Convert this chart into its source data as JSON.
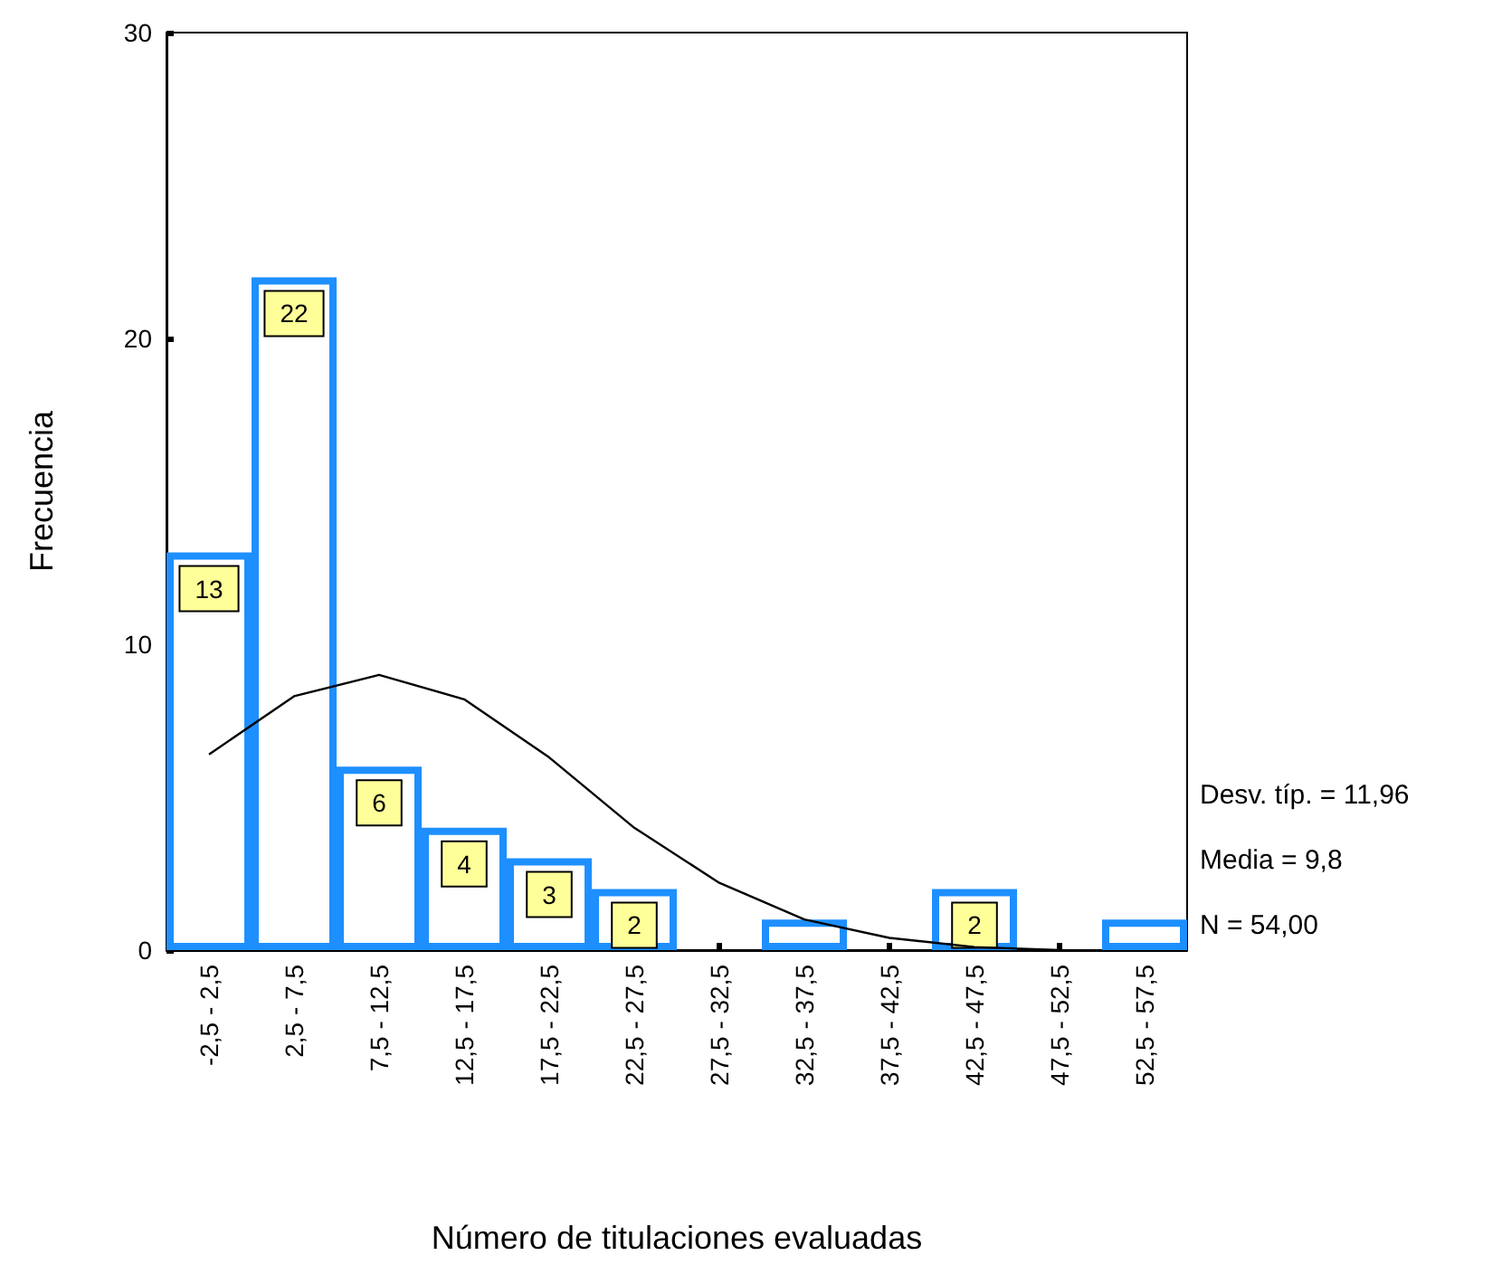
{
  "chart_data": {
    "type": "bar",
    "xlabel": "Número de titulaciones evaluadas",
    "ylabel": "Frecuencia",
    "categories": [
      "-2,5 - 2,5",
      "2,5 - 7,5",
      "7,5 - 12,5",
      "12,5 - 17,5",
      "17,5 - 22,5",
      "22,5 - 27,5",
      "27,5 - 32,5",
      "32,5 - 37,5",
      "37,5 - 42,5",
      "42,5 - 47,5",
      "47,5 - 52,5",
      "52,5 - 57,5"
    ],
    "series": [
      {
        "color": "#1e8fff",
        "values": [
          13,
          22,
          6,
          4,
          3,
          2,
          0,
          1,
          0,
          2,
          0,
          1
        ],
        "value_labels": [
          "13",
          "22",
          "6",
          "4",
          "3",
          "2",
          null,
          null,
          null,
          "2",
          null,
          null
        ]
      },
      {
        "type": "line",
        "color": "#000000",
        "marker": "none",
        "values": [
          6.4,
          8.3,
          9.0,
          8.2,
          6.3,
          4.0,
          2.2,
          1.0,
          0.4,
          0.1,
          0,
          null
        ]
      }
    ],
    "ylim": [
      0,
      30
    ],
    "yticks": [
      0,
      10,
      20,
      30
    ],
    "grid": false,
    "annotations": [
      "Desv. típ. = 11,96",
      "Media = 9,8",
      "N = 54,00"
    ]
  }
}
